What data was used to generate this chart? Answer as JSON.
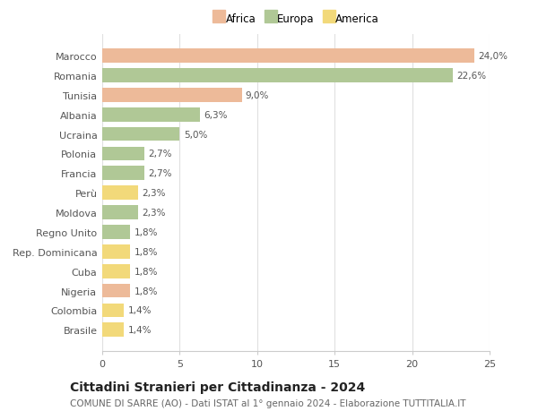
{
  "categories": [
    "Marocco",
    "Romania",
    "Tunisia",
    "Albania",
    "Ucraina",
    "Polonia",
    "Francia",
    "Perù",
    "Moldova",
    "Regno Unito",
    "Rep. Dominicana",
    "Cuba",
    "Nigeria",
    "Colombia",
    "Brasile"
  ],
  "values": [
    24.0,
    22.6,
    9.0,
    6.3,
    5.0,
    2.7,
    2.7,
    2.3,
    2.3,
    1.8,
    1.8,
    1.8,
    1.8,
    1.4,
    1.4
  ],
  "continents": [
    "Africa",
    "Europa",
    "Africa",
    "Europa",
    "Europa",
    "Europa",
    "Europa",
    "America",
    "Europa",
    "Europa",
    "America",
    "America",
    "Africa",
    "America",
    "America"
  ],
  "colors": {
    "Africa": "#EDBA99",
    "Europa": "#B0C896",
    "America": "#F2D97A"
  },
  "xlim": [
    0,
    25
  ],
  "xticks": [
    0,
    5,
    10,
    15,
    20,
    25
  ],
  "title": "Cittadini Stranieri per Cittadinanza - 2024",
  "subtitle": "COMUNE DI SARRE (AO) - Dati ISTAT al 1° gennaio 2024 - Elaborazione TUTTITALIA.IT",
  "title_fontsize": 10,
  "subtitle_fontsize": 7.5,
  "label_fontsize": 7.5,
  "tick_fontsize": 8,
  "bar_height": 0.72,
  "background_color": "#ffffff",
  "grid_color": "#e0e0e0"
}
